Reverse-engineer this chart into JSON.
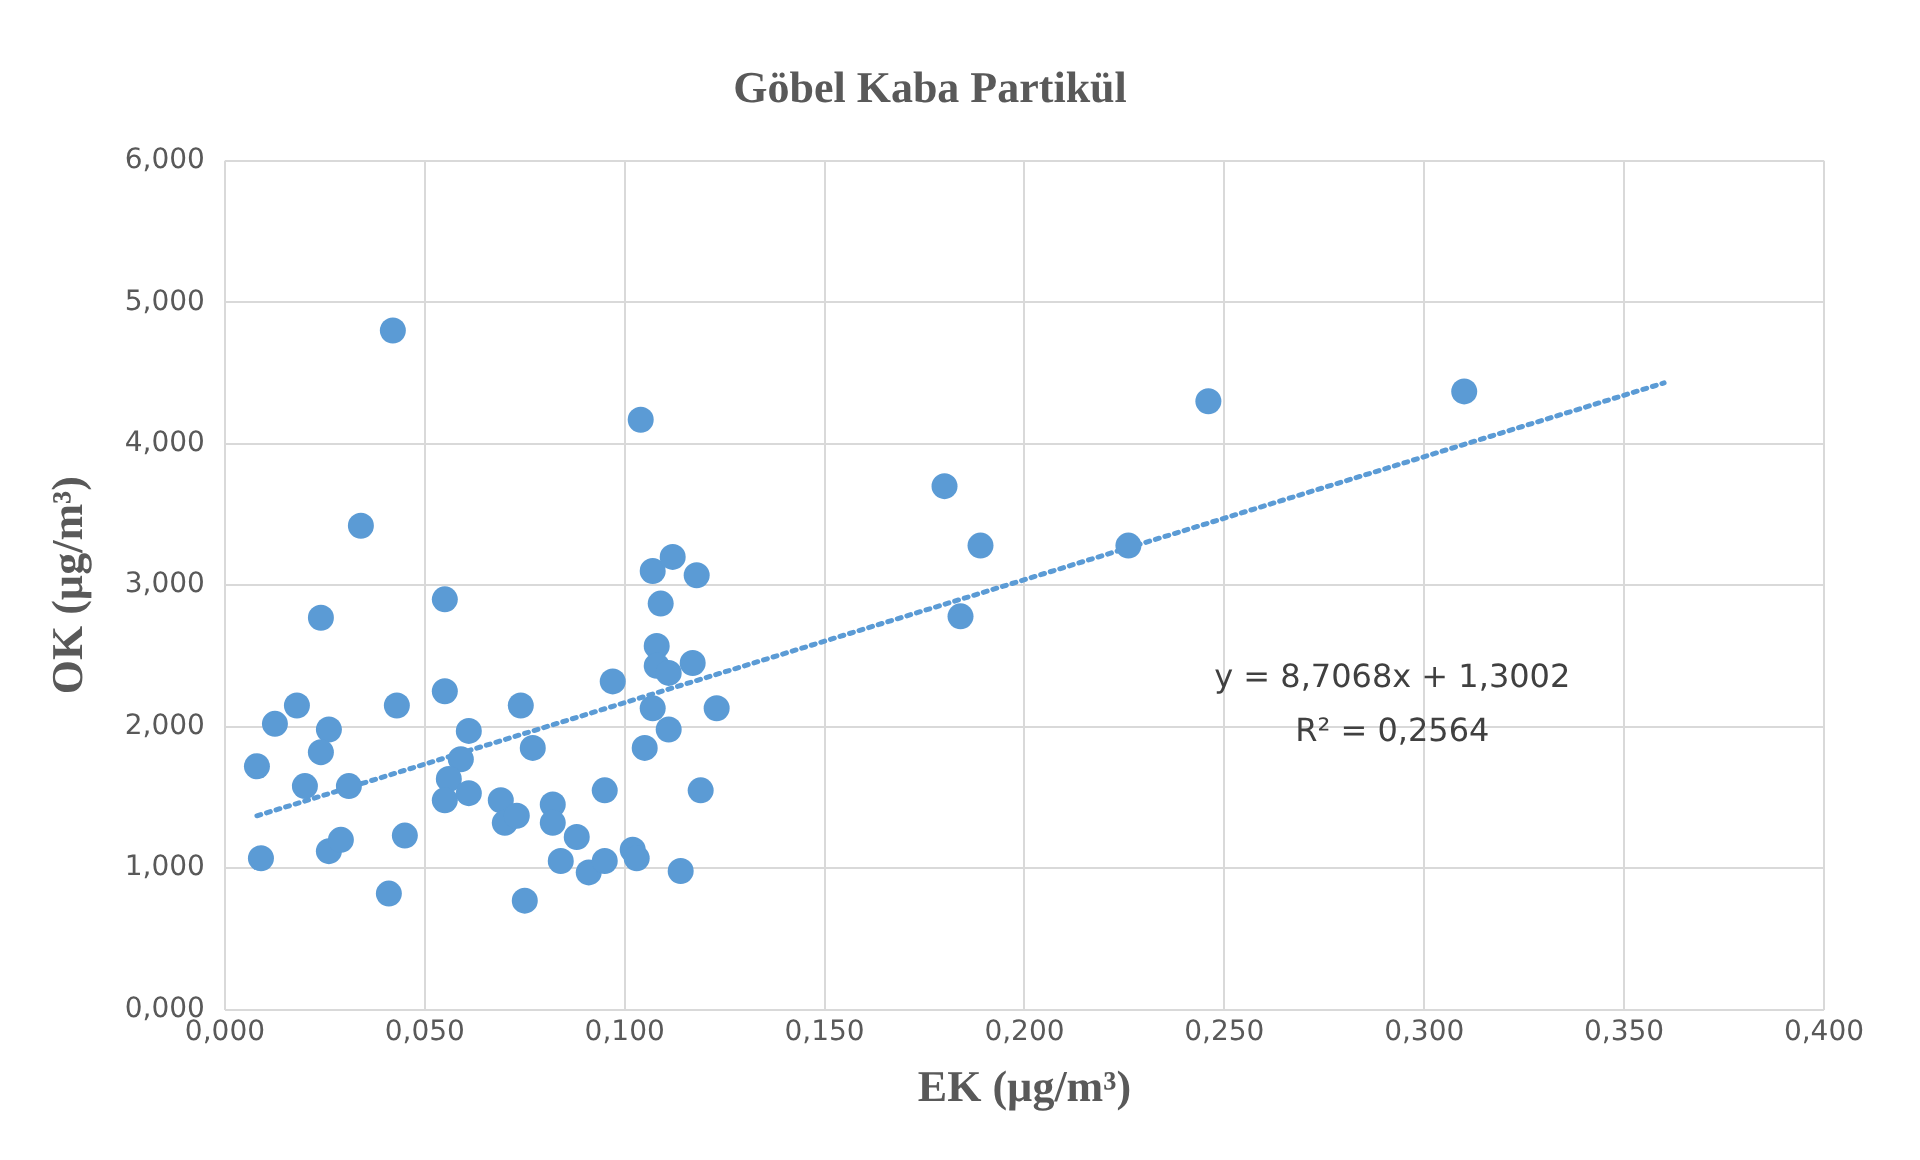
{
  "chart_data": {
    "type": "scatter",
    "title": "Göbel Kaba Partikül",
    "xlabel": "EK (µg/m³)",
    "ylabel": "OK (µg/m³)",
    "series": [
      {
        "type": "scatter",
        "color": "#5b9bd5",
        "marker": "circle",
        "x": [
          0.0125,
          0.018,
          0.026,
          0.024,
          0.02,
          0.031,
          0.008,
          0.009,
          0.026,
          0.029,
          0.024,
          0.034,
          0.042,
          0.041,
          0.045,
          0.043,
          0.055,
          0.055,
          0.061,
          0.059,
          0.056,
          0.055,
          0.061,
          0.069,
          0.07,
          0.073,
          0.074,
          0.077,
          0.075,
          0.082,
          0.082,
          0.088,
          0.084,
          0.091,
          0.095,
          0.102,
          0.103,
          0.095,
          0.097,
          0.104,
          0.107,
          0.112,
          0.118,
          0.109,
          0.108,
          0.108,
          0.111,
          0.117,
          0.107,
          0.111,
          0.105,
          0.123,
          0.119,
          0.114,
          0.18,
          0.189,
          0.184,
          0.226,
          0.246,
          0.31
        ],
        "values": [
          2.02,
          2.15,
          1.98,
          1.82,
          1.58,
          1.58,
          1.72,
          1.07,
          1.12,
          1.2,
          2.77,
          3.42,
          4.8,
          0.82,
          1.23,
          2.15,
          2.9,
          2.25,
          1.97,
          1.77,
          1.63,
          1.48,
          1.53,
          1.48,
          1.32,
          1.37,
          2.15,
          1.85,
          0.77,
          1.45,
          1.32,
          1.22,
          1.05,
          0.97,
          1.05,
          1.13,
          1.07,
          1.55,
          2.32,
          4.17,
          3.1,
          3.2,
          3.07,
          2.87,
          2.57,
          2.43,
          2.38,
          2.45,
          2.13,
          1.98,
          1.85,
          2.13,
          1.55,
          0.98,
          3.7,
          3.28,
          2.78,
          3.28,
          4.3,
          4.37
        ]
      },
      {
        "type": "line",
        "color": "#5b9bd5",
        "marker": "none",
        "line_style": "dotted",
        "x": [
          0.008,
          0.36
        ],
        "values": [
          1.37,
          4.43
        ]
      }
    ],
    "xlim": [
      0,
      0.4
    ],
    "xticks": [
      {
        "value": 0,
        "label": "0,000"
      },
      {
        "value": 0.05,
        "label": "0,050"
      },
      {
        "value": 0.1,
        "label": "0,100"
      },
      {
        "value": 0.15,
        "label": "0,150"
      },
      {
        "value": 0.2,
        "label": "0,200"
      },
      {
        "value": 0.25,
        "label": "0,250"
      },
      {
        "value": 0.3,
        "label": "0,300"
      },
      {
        "value": 0.35,
        "label": "0,350"
      },
      {
        "value": 0.4,
        "label": "0,400"
      }
    ],
    "ylim": [
      0,
      6
    ],
    "yticks": [
      {
        "value": 0,
        "label": "0,000"
      },
      {
        "value": 1,
        "label": "1,000"
      },
      {
        "value": 2,
        "label": "2,000"
      },
      {
        "value": 3,
        "label": "3,000"
      },
      {
        "value": 4,
        "label": "4,000"
      },
      {
        "value": 5,
        "label": "5,000"
      },
      {
        "value": 6,
        "label": "6,000"
      }
    ],
    "grid": true,
    "legend": false,
    "annotations": [
      "y = 8,7068x + 1,3002",
      "R² = 0,2564"
    ]
  }
}
